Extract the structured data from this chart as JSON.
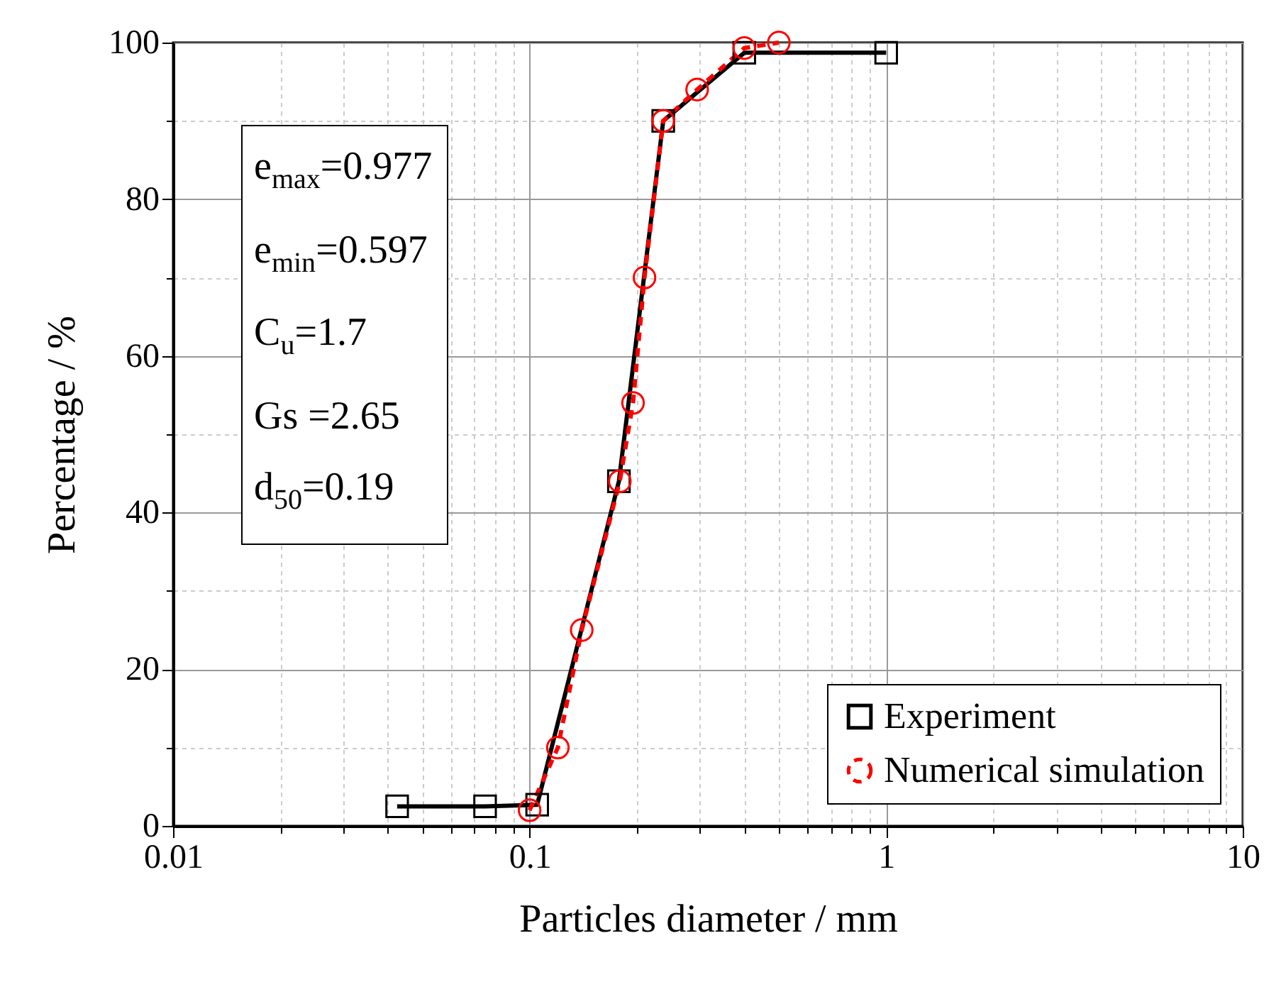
{
  "chart_data": {
    "type": "line",
    "xlabel": "Particles diameter / mm",
    "ylabel": "Percentage / %",
    "log": "x",
    "xlim": [
      0.01,
      10
    ],
    "ylim": [
      0,
      100
    ],
    "xticks": [
      0.01,
      {
        "value": 0.02,
        "label": null
      },
      {
        "value": 0.03,
        "label": null
      },
      {
        "value": 0.04,
        "label": null
      },
      {
        "value": 0.05,
        "label": null
      },
      {
        "value": 0.06,
        "label": null
      },
      {
        "value": 0.07,
        "label": null
      },
      {
        "value": 0.08,
        "label": null
      },
      {
        "value": 0.09,
        "label": null
      },
      0.1,
      {
        "value": 0.2,
        "label": null
      },
      {
        "value": 0.3,
        "label": null
      },
      {
        "value": 0.4,
        "label": null
      },
      {
        "value": 0.5,
        "label": null
      },
      {
        "value": 0.6,
        "label": null
      },
      {
        "value": 0.7,
        "label": null
      },
      {
        "value": 0.8,
        "label": null
      },
      {
        "value": 0.9,
        "label": null
      },
      1,
      {
        "value": 2,
        "label": null
      },
      {
        "value": 3,
        "label": null
      },
      {
        "value": 4,
        "label": null
      },
      {
        "value": 5,
        "label": null
      },
      {
        "value": 6,
        "label": null
      },
      {
        "value": 7,
        "label": null
      },
      {
        "value": 8,
        "label": null
      },
      {
        "value": 9,
        "label": null
      },
      10
    ],
    "yticks": [
      0,
      {
        "value": 10,
        "label": null
      },
      20,
      {
        "value": 30,
        "label": null
      },
      40,
      {
        "value": 50,
        "label": null
      },
      60,
      {
        "value": 70,
        "label": null
      },
      80,
      {
        "value": 90,
        "label": null
      },
      100
    ],
    "grid": true,
    "legend": "bottom right",
    "annotations": [
      "e$_{max}$=0.977",
      "e$_{min}$=0.597",
      "C$_{u}$=1.7",
      "Gs =2.65",
      "d$_{50}$=0.19"
    ],
    "series": [
      {
        "name": "Experiment",
        "color": "#000000",
        "marker": "square",
        "line_style": "solid",
        "x": [
          0.0425,
          0.075,
          0.105,
          0.178,
          0.237,
          0.4,
          1
        ],
        "values": [
          2.5,
          2.5,
          2.7,
          44,
          90,
          98.7,
          98.7
        ]
      },
      {
        "name": "Numerical simulation",
        "color": "#ff0000",
        "marker": "circle",
        "line_style": "dashed",
        "x": [
          0.1,
          0.12,
          0.14,
          0.179,
          0.195,
          0.21,
          0.237,
          0.295,
          0.4,
          0.5
        ],
        "values": [
          2,
          10,
          25,
          44,
          54,
          70,
          90,
          94,
          99.3,
          100
        ]
      }
    ]
  }
}
